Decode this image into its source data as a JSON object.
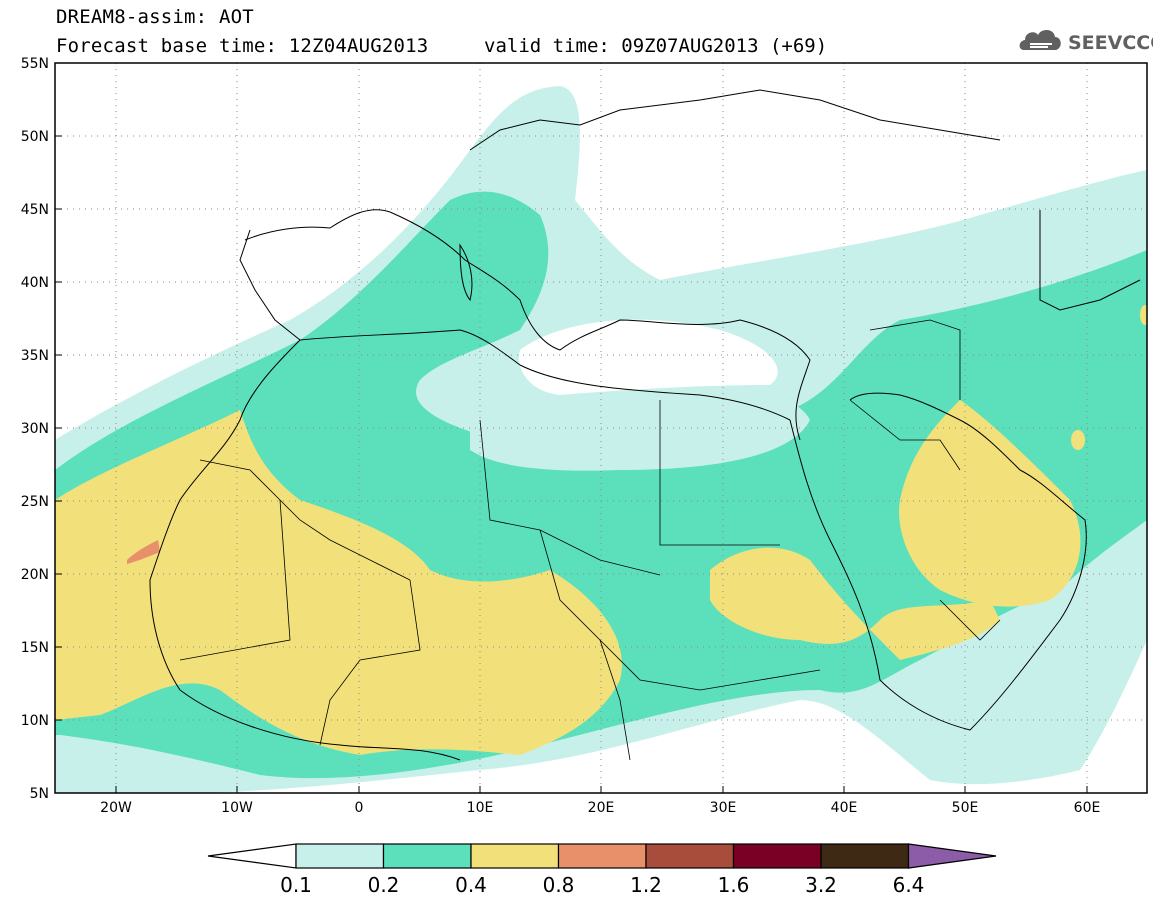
{
  "header": {
    "line1": "DREAM8-assim: AOT",
    "line2": "Forecast base time: 12Z04AUG2013",
    "valid": "valid time: 09Z07AUG2013 (+69)"
  },
  "logo": {
    "text": "SEEVCCC",
    "icon": "cloud-icon"
  },
  "map": {
    "region": {
      "lon_range": [
        -25,
        65
      ],
      "lat_range": [
        5,
        55
      ]
    },
    "lat_ticks": [
      "5N",
      "10N",
      "15N",
      "20N",
      "25N",
      "30N",
      "35N",
      "40N",
      "45N",
      "50N",
      "55N"
    ],
    "lon_ticks": [
      "20W",
      "10W",
      "0",
      "10E",
      "20E",
      "30E",
      "40E",
      "50E",
      "60E"
    ],
    "grid": "dotted"
  },
  "colorbar": {
    "levels": [
      "0.1",
      "0.2",
      "0.4",
      "0.8",
      "1.2",
      "1.6",
      "3.2",
      "6.4"
    ],
    "colors": [
      "#c8f0ea",
      "#5ce0bc",
      "#f2e17a",
      "#e8906a",
      "#a84d3c",
      "#7a0026",
      "#3e2a14",
      "#8c5ca8"
    ],
    "under_color": "#ffffff",
    "over_color": "#8c5ca8"
  }
}
